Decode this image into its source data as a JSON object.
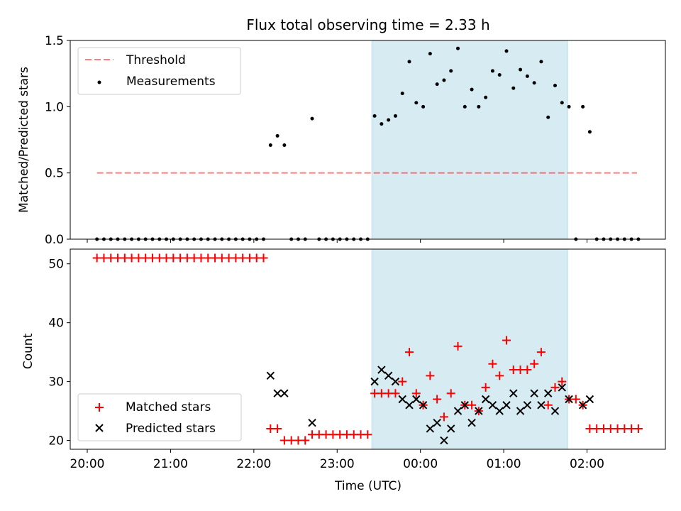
{
  "chart_data": [
    {
      "type": "scatter",
      "title": "Flux total observing time = 2.33 h",
      "xlabel": "",
      "ylabel": "Matched/Predicted stars",
      "ylim": [
        0,
        1.5
      ],
      "yticks": [
        "0.0",
        "0.5",
        "1.0",
        "1.5"
      ],
      "grid": false,
      "legend_position": "upper-left",
      "shaded_interval": [
        "23:25",
        "01:46"
      ],
      "threshold": {
        "name": "Threshold",
        "value": 0.5,
        "x_range": [
          "20:07",
          "02:36"
        ]
      },
      "series": [
        {
          "name": "Measurements",
          "points": [
            [
              "20:07",
              0
            ],
            [
              "20:12",
              0
            ],
            [
              "20:17",
              0
            ],
            [
              "20:22",
              0
            ],
            [
              "20:27",
              0
            ],
            [
              "20:32",
              0
            ],
            [
              "20:37",
              0
            ],
            [
              "20:42",
              0
            ],
            [
              "20:47",
              0
            ],
            [
              "20:52",
              0
            ],
            [
              "20:57",
              0
            ],
            [
              "21:02",
              0
            ],
            [
              "21:07",
              0
            ],
            [
              "21:12",
              0
            ],
            [
              "21:17",
              0
            ],
            [
              "21:22",
              0
            ],
            [
              "21:27",
              0
            ],
            [
              "21:32",
              0
            ],
            [
              "21:37",
              0
            ],
            [
              "21:42",
              0
            ],
            [
              "21:47",
              0
            ],
            [
              "21:52",
              0
            ],
            [
              "21:57",
              0
            ],
            [
              "22:02",
              0
            ],
            [
              "22:07",
              0
            ],
            [
              "22:12",
              0.71
            ],
            [
              "22:17",
              0.78
            ],
            [
              "22:22",
              0.71
            ],
            [
              "22:27",
              0
            ],
            [
              "22:32",
              0
            ],
            [
              "22:37",
              0
            ],
            [
              "22:42",
              0.91
            ],
            [
              "22:47",
              0
            ],
            [
              "22:52",
              0
            ],
            [
              "22:57",
              0
            ],
            [
              "23:02",
              0
            ],
            [
              "23:07",
              0
            ],
            [
              "23:12",
              0
            ],
            [
              "23:17",
              0
            ],
            [
              "23:22",
              0
            ],
            [
              "23:27",
              0.93
            ],
            [
              "23:32",
              0.87
            ],
            [
              "23:37",
              0.9
            ],
            [
              "23:42",
              0.93
            ],
            [
              "23:47",
              1.1
            ],
            [
              "23:52",
              1.34
            ],
            [
              "23:57",
              1.03
            ],
            [
              "00:02",
              1.0
            ],
            [
              "00:07",
              1.4
            ],
            [
              "00:12",
              1.17
            ],
            [
              "00:17",
              1.2
            ],
            [
              "00:22",
              1.27
            ],
            [
              "00:27",
              1.44
            ],
            [
              "00:32",
              1.0
            ],
            [
              "00:37",
              1.13
            ],
            [
              "00:42",
              1.0
            ],
            [
              "00:47",
              1.07
            ],
            [
              "00:52",
              1.27
            ],
            [
              "00:57",
              1.24
            ],
            [
              "01:02",
              1.42
            ],
            [
              "01:07",
              1.14
            ],
            [
              "01:12",
              1.28
            ],
            [
              "01:17",
              1.23
            ],
            [
              "01:22",
              1.18
            ],
            [
              "01:27",
              1.34
            ],
            [
              "01:32",
              0.92
            ],
            [
              "01:37",
              1.16
            ],
            [
              "01:42",
              1.03
            ],
            [
              "01:47",
              1.0
            ],
            [
              "01:52",
              0
            ],
            [
              "01:57",
              1.0
            ],
            [
              "02:02",
              0.81
            ],
            [
              "02:07",
              0
            ],
            [
              "02:12",
              0
            ],
            [
              "02:17",
              0
            ],
            [
              "02:22",
              0
            ],
            [
              "02:27",
              0
            ],
            [
              "02:32",
              0
            ],
            [
              "02:37",
              0
            ]
          ]
        }
      ]
    },
    {
      "type": "scatter",
      "title": "",
      "xlabel": "Time (UTC)",
      "ylabel": "Count",
      "ylim": [
        18.5,
        52.5
      ],
      "yticks": [
        "20",
        "30",
        "40",
        "50"
      ],
      "xticks": [
        "20:00",
        "21:00",
        "22:00",
        "23:00",
        "00:00",
        "01:00",
        "02:00"
      ],
      "grid": false,
      "legend_position": "lower-left",
      "shaded_interval": [
        "23:25",
        "01:46"
      ],
      "series": [
        {
          "name": "Matched stars",
          "points": [
            [
              "20:07",
              51
            ],
            [
              "20:12",
              51
            ],
            [
              "20:17",
              51
            ],
            [
              "20:22",
              51
            ],
            [
              "20:27",
              51
            ],
            [
              "20:32",
              51
            ],
            [
              "20:37",
              51
            ],
            [
              "20:42",
              51
            ],
            [
              "20:47",
              51
            ],
            [
              "20:52",
              51
            ],
            [
              "20:57",
              51
            ],
            [
              "21:02",
              51
            ],
            [
              "21:07",
              51
            ],
            [
              "21:12",
              51
            ],
            [
              "21:17",
              51
            ],
            [
              "21:22",
              51
            ],
            [
              "21:27",
              51
            ],
            [
              "21:32",
              51
            ],
            [
              "21:37",
              51
            ],
            [
              "21:42",
              51
            ],
            [
              "21:47",
              51
            ],
            [
              "21:52",
              51
            ],
            [
              "21:57",
              51
            ],
            [
              "22:02",
              51
            ],
            [
              "22:07",
              51
            ],
            [
              "22:12",
              22
            ],
            [
              "22:17",
              22
            ],
            [
              "22:22",
              20
            ],
            [
              "22:27",
              20
            ],
            [
              "22:32",
              20
            ],
            [
              "22:37",
              20
            ],
            [
              "22:42",
              21
            ],
            [
              "22:47",
              21
            ],
            [
              "22:52",
              21
            ],
            [
              "22:57",
              21
            ],
            [
              "23:02",
              21
            ],
            [
              "23:07",
              21
            ],
            [
              "23:12",
              21
            ],
            [
              "23:17",
              21
            ],
            [
              "23:22",
              21
            ],
            [
              "23:27",
              28
            ],
            [
              "23:32",
              28
            ],
            [
              "23:37",
              28
            ],
            [
              "23:42",
              28
            ],
            [
              "23:47",
              30
            ],
            [
              "23:52",
              35
            ],
            [
              "23:57",
              28
            ],
            [
              "00:02",
              26
            ],
            [
              "00:07",
              31
            ],
            [
              "00:12",
              27
            ],
            [
              "00:17",
              24
            ],
            [
              "00:22",
              28
            ],
            [
              "00:27",
              36
            ],
            [
              "00:32",
              26
            ],
            [
              "00:37",
              26
            ],
            [
              "00:42",
              25
            ],
            [
              "00:47",
              29
            ],
            [
              "00:52",
              33
            ],
            [
              "00:57",
              31
            ],
            [
              "01:02",
              37
            ],
            [
              "01:07",
              32
            ],
            [
              "01:12",
              32
            ],
            [
              "01:17",
              32
            ],
            [
              "01:22",
              33
            ],
            [
              "01:27",
              35
            ],
            [
              "01:32",
              26
            ],
            [
              "01:37",
              29
            ],
            [
              "01:42",
              30
            ],
            [
              "01:47",
              27
            ],
            [
              "01:52",
              27
            ],
            [
              "01:57",
              26
            ],
            [
              "02:02",
              22
            ],
            [
              "02:07",
              22
            ],
            [
              "02:12",
              22
            ],
            [
              "02:17",
              22
            ],
            [
              "02:22",
              22
            ],
            [
              "02:27",
              22
            ],
            [
              "02:32",
              22
            ],
            [
              "02:37",
              22
            ]
          ]
        },
        {
          "name": "Predicted stars",
          "points": [
            [
              "22:12",
              31
            ],
            [
              "22:17",
              28
            ],
            [
              "22:22",
              28
            ],
            [
              "22:42",
              23
            ],
            [
              "23:27",
              30
            ],
            [
              "23:32",
              32
            ],
            [
              "23:37",
              31
            ],
            [
              "23:42",
              30
            ],
            [
              "23:47",
              27
            ],
            [
              "23:52",
              26
            ],
            [
              "23:57",
              27
            ],
            [
              "00:02",
              26
            ],
            [
              "00:07",
              22
            ],
            [
              "00:12",
              23
            ],
            [
              "00:17",
              20
            ],
            [
              "00:22",
              22
            ],
            [
              "00:27",
              25
            ],
            [
              "00:32",
              26
            ],
            [
              "00:37",
              23
            ],
            [
              "00:42",
              25
            ],
            [
              "00:47",
              27
            ],
            [
              "00:52",
              26
            ],
            [
              "00:57",
              25
            ],
            [
              "01:02",
              26
            ],
            [
              "01:07",
              28
            ],
            [
              "01:12",
              25
            ],
            [
              "01:17",
              26
            ],
            [
              "01:22",
              28
            ],
            [
              "01:27",
              26
            ],
            [
              "01:32",
              28
            ],
            [
              "01:37",
              25
            ],
            [
              "01:42",
              29
            ],
            [
              "01:47",
              27
            ],
            [
              "01:57",
              26
            ],
            [
              "02:02",
              27
            ]
          ]
        }
      ]
    }
  ],
  "colors": {
    "shade": "#add8e6",
    "threshold": "#ff0000",
    "matched": "#ff0000",
    "predicted": "#000000",
    "measurement": "#000000"
  }
}
